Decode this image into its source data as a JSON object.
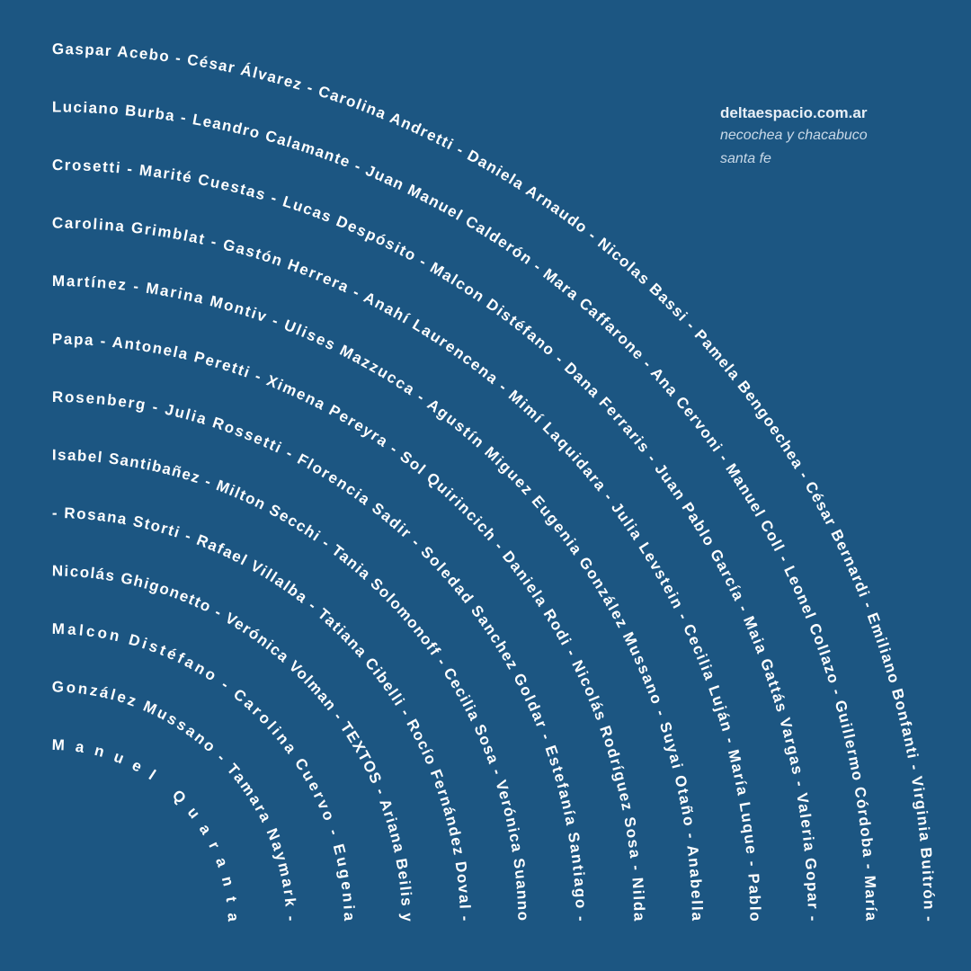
{
  "colors": {
    "background": "#1c5682",
    "text": "#ffffff",
    "info_text": "#c9d9e8"
  },
  "info": {
    "website": "deltaespacio.com.ar",
    "address_line1": "necochea y chacabuco",
    "address_line2": "santa fe"
  },
  "arcs": [
    "Gaspar Acebo - César Álvarez - Carolina Andretti - Daniela Arnaudo - Nicolas Bassi - Pamela Bengoechea - César Bernardi - Emiliano Bonfanti - Virginia Buitrón -",
    "Luciano Burba - Leandro Calamante - Juan Manuel Calderón - Mara Caffarone - Ana Cervoni - Manuel Coll - Leonel Collazo - Guillermo Córdoba - María",
    "Crosetti - Marité Cuestas - Lucas Despósito - Malcon Distéfano - Dana Ferraris - Juan Pablo García - Maia Gattás Vargas - Valeria Gopar -",
    "Carolina Grimblat - Gastón Herrera - Anahí Laurencena - Mimí Laquidara - Julia Levstein - Cecilia Luján - María Luque - Pablo",
    "Martínez - Marina Montiv - Ulises Mazzucca - Agustín Miguez Eugenia González Mussano - Suyai Otaño - Anabella",
    "Papa - Antonela Peretti - Ximena Pereyra - Sol Quirincich - Daniela Rodi - Nicolás Rodríguez Sosa - Nilda",
    "Rosenberg - Julia Rossetti - Florencia Sadir - Soledad Sanchez Goldar - Estefanía Santiago -",
    "Isabel Santibañez - Milton Secchi - Tania Solomonoff - Cecilia Sosa - Verónica Suanno",
    "- Rosana Storti - Rafael Villalba - Tatiana Cibelli - Rocío Fernández Doval -",
    "Nicolás Ghigonetto - Verónica Volman - TEXTOS - Ariana Beilis y",
    "Malcon Distéfano - Carolina Cuervo - Eugenia",
    "González Mussano - Tamara Naymark -",
    "Manuel Quaranta"
  ]
}
